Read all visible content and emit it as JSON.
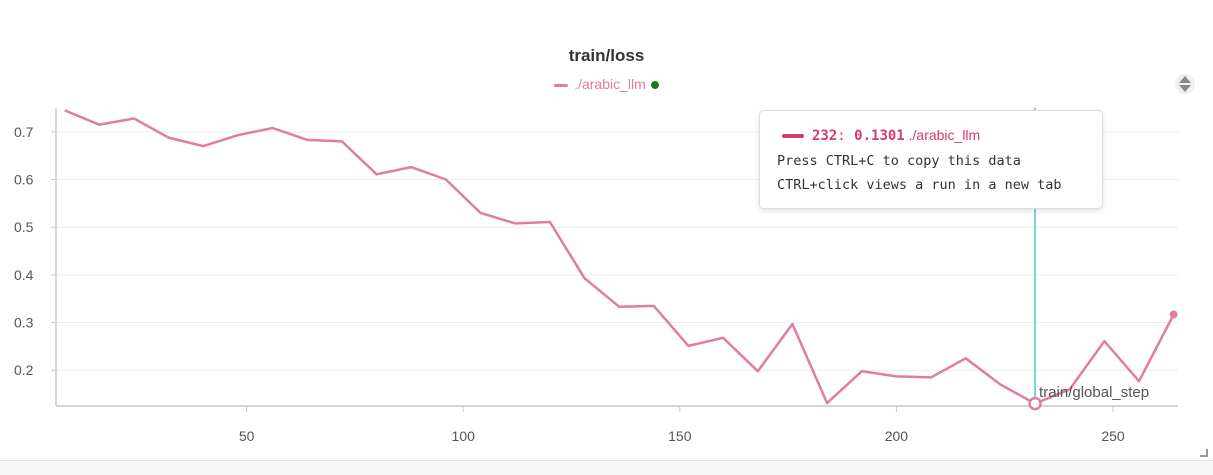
{
  "chart_data": {
    "type": "line",
    "title": "train/loss",
    "xlabel": "train/global_step",
    "ylabel": "",
    "xlim": [
      6,
      265
    ],
    "ylim": [
      0.125,
      0.75
    ],
    "xticks": [
      50,
      100,
      150,
      200,
      250
    ],
    "yticks": [
      0.2,
      0.3,
      0.4,
      0.5,
      0.6,
      0.7
    ],
    "grid": true,
    "legend_position": "top-center",
    "series": [
      {
        "name": "./arabic_llm",
        "color": "#e07ca5",
        "x": [
          8,
          16,
          24,
          32,
          40,
          48,
          56,
          64,
          72,
          80,
          88,
          96,
          104,
          112,
          120,
          128,
          136,
          144,
          152,
          160,
          168,
          176,
          184,
          192,
          200,
          208,
          216,
          224,
          232,
          240,
          248,
          256,
          264
        ],
        "y": [
          0.745,
          0.715,
          0.728,
          0.688,
          0.67,
          0.693,
          0.708,
          0.683,
          0.68,
          0.611,
          0.626,
          0.6,
          0.53,
          0.508,
          0.511,
          0.393,
          0.333,
          0.335,
          0.251,
          0.268,
          0.198,
          0.297,
          0.131,
          0.198,
          0.187,
          0.185,
          0.225,
          0.17,
          0.1301,
          0.16,
          0.261,
          0.177,
          0.317
        ]
      }
    ]
  },
  "legend": {
    "run_name": "./arabic_llm",
    "run_color": "#e07ca5",
    "status_color": "#1b7a1b"
  },
  "tooltip": {
    "step": "232",
    "value": "0.1301",
    "run": "./arabic_llm",
    "color": "#d63870",
    "hint_copy": "Press CTRL+C to copy this data",
    "hint_click": "CTRL+click views a run in a new tab"
  },
  "hover": {
    "x": 232,
    "y": 0.1301,
    "line_color": "#4fc3cf"
  },
  "icons": {
    "scroll": "chevron-up-down-icon",
    "resize": "resize-corner-icon"
  }
}
